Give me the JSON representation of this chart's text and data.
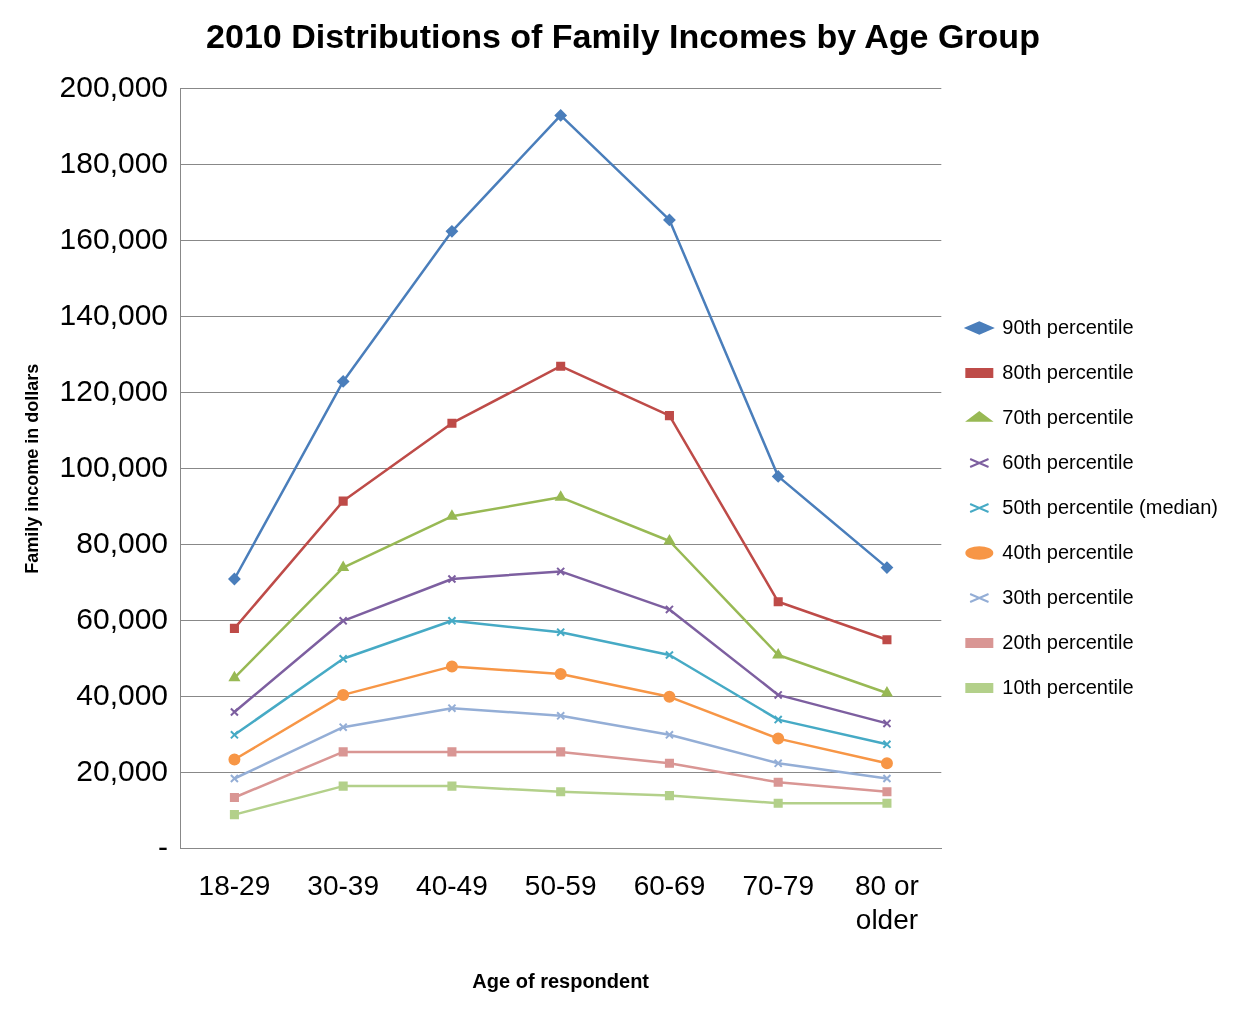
{
  "chart_data": {
    "type": "line",
    "title": "2010 Distributions of Family Incomes by Age Group",
    "xlabel": "Age of respondent",
    "ylabel": "Family income in dollars",
    "categories": [
      "18-29",
      "30-39",
      "40-49",
      "50-59",
      "60-69",
      "70-79",
      "80 or older"
    ],
    "ylim": [
      0,
      200000
    ],
    "yticks": [
      {
        "value": 0,
        "label": "-"
      },
      {
        "value": 20000,
        "label": "20,000"
      },
      {
        "value": 40000,
        "label": "40,000"
      },
      {
        "value": 60000,
        "label": "60,000"
      },
      {
        "value": 80000,
        "label": "80,000"
      },
      {
        "value": 100000,
        "label": "100,000"
      },
      {
        "value": 120000,
        "label": "120,000"
      },
      {
        "value": 140000,
        "label": "140,000"
      },
      {
        "value": 160000,
        "label": "160,000"
      },
      {
        "value": 180000,
        "label": "180,000"
      },
      {
        "value": 200000,
        "label": "200,000"
      }
    ],
    "grid": "y",
    "legend": "right",
    "line_style": "solid",
    "series": [
      {
        "name": "90th percentile",
        "color": "#4a7ebb",
        "marker": "diamond",
        "values": [
          71000,
          123000,
          162500,
          193000,
          165500,
          98000,
          74000
        ]
      },
      {
        "name": "80th percentile",
        "color": "#be4b48",
        "marker": "square",
        "values": [
          58000,
          91500,
          112000,
          127000,
          114000,
          65000,
          55000
        ]
      },
      {
        "name": "70th percentile",
        "color": "#98b954",
        "marker": "triangle",
        "values": [
          45000,
          74000,
          87500,
          92500,
          81000,
          51000,
          41000
        ]
      },
      {
        "name": "60th percentile",
        "color": "#7d5fa0",
        "marker": "cross",
        "values": [
          36000,
          60000,
          71000,
          73000,
          63000,
          40500,
          33000
        ]
      },
      {
        "name": "50th percentile (median)",
        "color": "#46aac5",
        "marker": "cross",
        "values": [
          30000,
          50000,
          60000,
          57000,
          51000,
          34000,
          27500
        ]
      },
      {
        "name": "40th percentile",
        "color": "#f79646",
        "marker": "circle",
        "values": [
          23500,
          40500,
          48000,
          46000,
          40000,
          29000,
          22500
        ]
      },
      {
        "name": "30th percentile",
        "color": "#94aed6",
        "marker": "cross",
        "values": [
          18500,
          32000,
          37000,
          35000,
          30000,
          22500,
          18500
        ]
      },
      {
        "name": "20th percentile",
        "color": "#d99694",
        "marker": "square",
        "values": [
          13500,
          25500,
          25500,
          25500,
          22500,
          17500,
          15000
        ]
      },
      {
        "name": "10th percentile",
        "color": "#b3d08a",
        "marker": "square",
        "values": [
          9000,
          16500,
          16500,
          15000,
          14000,
          12000,
          12000
        ]
      }
    ]
  }
}
